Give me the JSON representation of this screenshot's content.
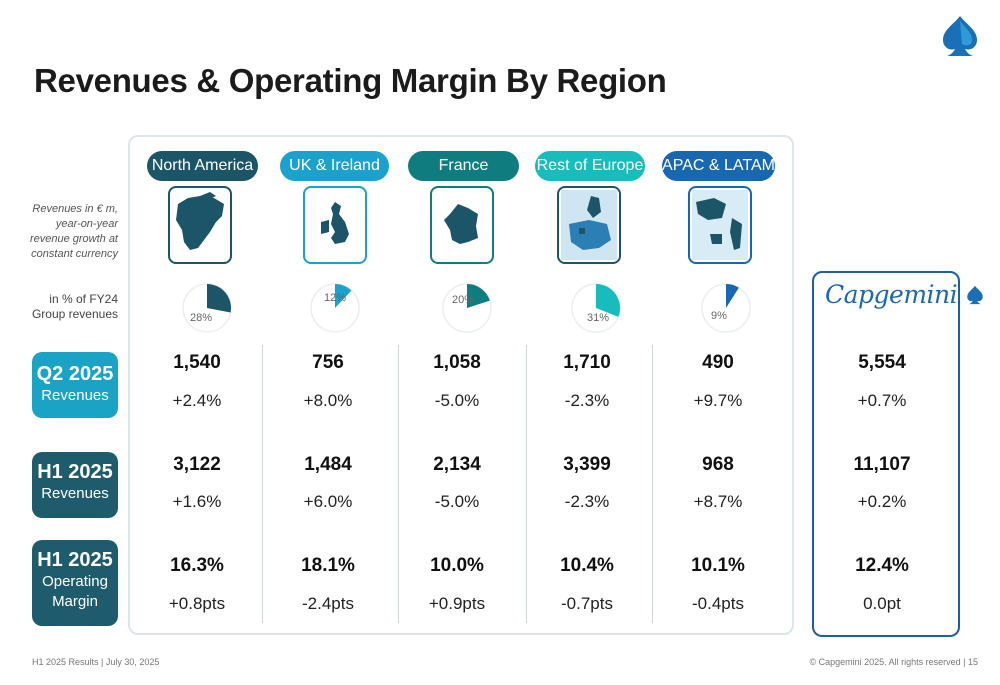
{
  "title": "Revenues & Operating Margin By Region",
  "notes": {
    "revenues": [
      "Revenues in € m,",
      "year-on-year",
      "revenue growth at",
      "constant currency"
    ],
    "share": [
      "in % of FY24",
      "Group revenues"
    ]
  },
  "regions": [
    {
      "name": "North America",
      "color": "#1d5568",
      "map_icon": "north-america-map-icon",
      "share_pct": 28,
      "share_label": "28%",
      "q2_rev": "1,540",
      "q2_growth": "+2.4%",
      "h1_rev": "3,122",
      "h1_growth": "+1.6%",
      "h1_margin": "16.3%",
      "h1_margin_change": "+0.8pts"
    },
    {
      "name": "UK & Ireland",
      "color": "#1aa1cc",
      "map_icon": "uk-ireland-map-icon",
      "share_pct": 12,
      "share_label": "12%",
      "q2_rev": "756",
      "q2_growth": "+8.0%",
      "h1_rev": "1,484",
      "h1_growth": "+6.0%",
      "h1_margin": "18.1%",
      "h1_margin_change": "-2.4pts"
    },
    {
      "name": "France",
      "color": "#0f7d7f",
      "map_icon": "france-map-icon",
      "share_pct": 20,
      "share_label": "20%",
      "q2_rev": "1,058",
      "q2_growth": "-5.0%",
      "h1_rev": "2,134",
      "h1_growth": "-5.0%",
      "h1_margin": "10.0%",
      "h1_margin_change": "+0.9pts"
    },
    {
      "name": "Rest of Europe",
      "color": "#17bcbc",
      "map_icon": "europe-map-icon",
      "share_pct": 31,
      "share_label": "31%",
      "q2_rev": "1,710",
      "q2_growth": "-2.3%",
      "h1_rev": "3,399",
      "h1_growth": "-2.3%",
      "h1_margin": "10.4%",
      "h1_margin_change": "-0.7pts"
    },
    {
      "name": "APAC & LATAM",
      "color": "#1768b0",
      "map_icon": "apac-latam-map-icon",
      "share_pct": 9,
      "share_label": "9%",
      "q2_rev": "490",
      "q2_growth": "+9.7%",
      "h1_rev": "968",
      "h1_growth": "+8.7%",
      "h1_margin": "10.1%",
      "h1_margin_change": "-0.4pts"
    }
  ],
  "row_labels": {
    "q2": {
      "title": "Q2 2025",
      "sub": "Revenues",
      "color": "#1ba3c5"
    },
    "h1": {
      "title": "H1 2025",
      "sub": "Revenues",
      "color": "#1e5c6d"
    },
    "margin": {
      "title": "H1 2025",
      "sub1": "Operating",
      "sub2": "Margin",
      "color": "#1e5c6d"
    }
  },
  "group": {
    "brand": "Capgemini",
    "q2_rev": "5,554",
    "q2_growth": "+0.7%",
    "h1_rev": "11,107",
    "h1_growth": "+0.2%",
    "h1_margin": "12.4%",
    "h1_margin_change": "0.0pt"
  },
  "footer": {
    "left": "H1 2025 Results | July 30, 2025",
    "right": "© Capgemini 2025. All rights reserved  |   15"
  },
  "colors": {
    "accent": "#1a68b3",
    "panel_border": "#dbe5ea",
    "pie_bg": "#e9eef0"
  }
}
